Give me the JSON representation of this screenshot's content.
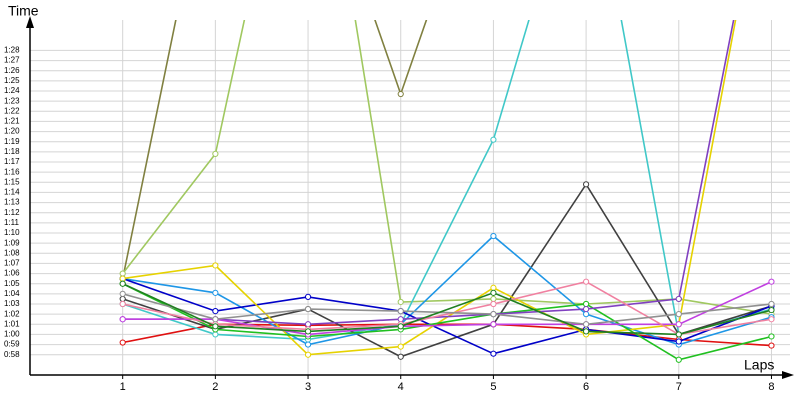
{
  "chart_data": {
    "type": "line",
    "y_label": "Time",
    "x_label": "Laps",
    "x": [
      1,
      2,
      3,
      4,
      5,
      6,
      7,
      8
    ],
    "xlim": [
      0,
      8.2
    ],
    "xticks": [
      1,
      2,
      3,
      4,
      5,
      6,
      7,
      8
    ],
    "ylim": [
      56,
      91
    ],
    "yticks": [
      {
        "value": 58,
        "label": "0:58"
      },
      {
        "value": 59,
        "label": "0:59"
      },
      {
        "value": 60,
        "label": "1:00"
      },
      {
        "value": 61,
        "label": "1:01"
      },
      {
        "value": 62,
        "label": "1:02"
      },
      {
        "value": 63,
        "label": "1:03"
      },
      {
        "value": 64,
        "label": "1:04"
      },
      {
        "value": 65,
        "label": "1:05"
      },
      {
        "value": 66,
        "label": "1:06"
      },
      {
        "value": 67,
        "label": "1:07"
      },
      {
        "value": 68,
        "label": "1:08"
      },
      {
        "value": 69,
        "label": "1:09"
      },
      {
        "value": 70,
        "label": "1:10"
      },
      {
        "value": 71,
        "label": "1:11"
      },
      {
        "value": 72,
        "label": "1:12"
      },
      {
        "value": 73,
        "label": "1:13"
      },
      {
        "value": 74,
        "label": "1:14"
      },
      {
        "value": 75,
        "label": "1:15"
      },
      {
        "value": 76,
        "label": "1:16"
      },
      {
        "value": 77,
        "label": "1:17"
      },
      {
        "value": 78,
        "label": "1:18"
      },
      {
        "value": 79,
        "label": "1:19"
      },
      {
        "value": 80,
        "label": "1:20"
      },
      {
        "value": 81,
        "label": "1:21"
      },
      {
        "value": 82,
        "label": "1:22"
      },
      {
        "value": 83,
        "label": "1:23"
      },
      {
        "value": 84,
        "label": "1:24"
      },
      {
        "value": 85,
        "label": "1:25"
      },
      {
        "value": 86,
        "label": "1:26"
      },
      {
        "value": 87,
        "label": "1:27"
      },
      {
        "value": 88,
        "label": "1:28"
      }
    ],
    "grid": true,
    "series": [
      {
        "color": "#e01010",
        "values": [
          59.2,
          61,
          60.9,
          61,
          61,
          60.5,
          59.5,
          58.9
        ]
      },
      {
        "color": "#808040",
        "values": [
          65.5,
          110,
          110,
          83.7,
          110,
          null,
          null,
          null
        ]
      },
      {
        "color": "#a0c860",
        "values": [
          66,
          77.8,
          120,
          63.2,
          63.5,
          63,
          63.5,
          62
        ]
      },
      {
        "color": "#40c8c8",
        "values": [
          63,
          60,
          59.5,
          61,
          79.2,
          110,
          60,
          62.5
        ]
      },
      {
        "color": "#404040",
        "values": [
          63.5,
          60.5,
          62.5,
          57.8,
          61,
          74.8,
          60,
          62.8
        ]
      },
      {
        "color": "#1e96e6",
        "values": [
          65.5,
          64.1,
          59,
          61,
          69.7,
          62,
          59,
          61.7
        ]
      },
      {
        "color": "#0000c8",
        "values": [
          65.5,
          62.3,
          63.7,
          62.3,
          58.1,
          60.5,
          59.3,
          62.8
        ]
      },
      {
        "color": "#e6d200",
        "values": [
          65.5,
          66.8,
          58,
          58.8,
          64.6,
          60,
          61,
          110
        ]
      },
      {
        "color": "#20c020",
        "values": [
          65,
          60.5,
          59.8,
          60.5,
          62,
          63,
          57.5,
          59.8
        ]
      },
      {
        "color": "#8040c0",
        "values": [
          61.5,
          61.5,
          61,
          61.5,
          62,
          62.5,
          63.5,
          110
        ]
      },
      {
        "color": "#c040e0",
        "values": [
          61.5,
          61.5,
          60,
          60.8,
          61,
          61,
          61,
          65.2
        ]
      },
      {
        "color": "#f080a0",
        "values": [
          63,
          61,
          60.5,
          61,
          63,
          65.2,
          60,
          61.5
        ]
      },
      {
        "color": "#909090",
        "values": [
          64,
          61.5,
          62.5,
          62.3,
          62,
          61,
          62,
          63
        ]
      },
      {
        "color": "#208020",
        "values": [
          65,
          60.8,
          60.3,
          60.8,
          64.1,
          60.3,
          60,
          62.4
        ]
      }
    ]
  }
}
